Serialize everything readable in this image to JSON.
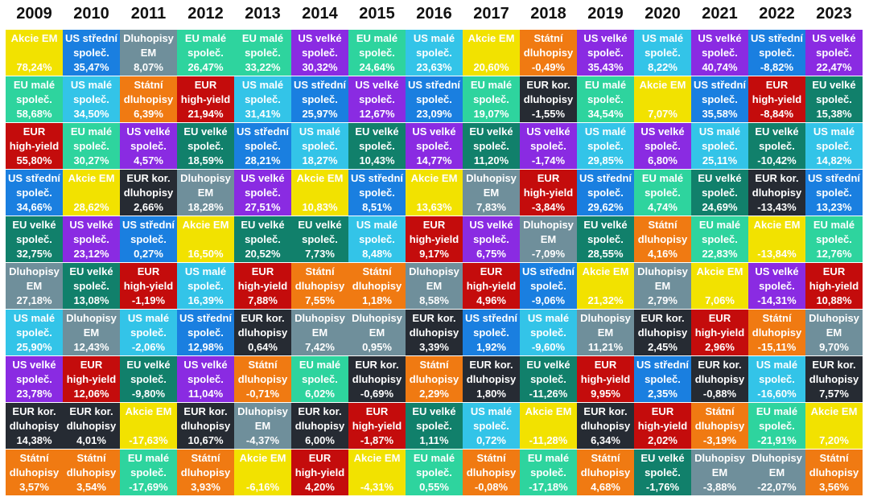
{
  "colors": {
    "Akcie EM": "#f2e200",
    "US střední společ.": "#1a7fe0",
    "Dluhopisy EM": "#6f8f9b",
    "EU malé společ.": "#2ed49e",
    "US velké společ.": "#8a2be2",
    "Státní dluhopisy": "#f07a12",
    "US malé společ.": "#33c4e8",
    "EUR high-yield": "#c40c0c",
    "EU velké společ.": "#11806b",
    "EUR kor. dluhopisy": "#262b33"
  },
  "labels": {
    "Akcie EM": "Akcie EM",
    "US střední společ.": "US střední\nspoleč.",
    "Dluhopisy EM": "Dluhopisy\nEM",
    "EU malé společ.": "EU malé\nspoleč.",
    "US velké společ.": "US velké\nspoleč.",
    "Státní dluhopisy": "Státní\ndluhopisy",
    "US malé společ.": "US malé\nspoleč.",
    "EUR high-yield": "EUR\nhigh-yield",
    "EU velké společ.": "EU velké\nspoleč.",
    "EUR kor. dluhopisy": "EUR kor.\ndluhopisy"
  },
  "chart_data": {
    "type": "table",
    "years": [
      "2009",
      "2010",
      "2011",
      "2012",
      "2013",
      "2014",
      "2015",
      "2016",
      "2017",
      "2018",
      "2019",
      "2020",
      "2021",
      "2022",
      "2023"
    ],
    "columns": [
      [
        [
          "Akcie EM",
          "78,24%"
        ],
        [
          "EU malé společ.",
          "58,68%"
        ],
        [
          "EUR high-yield",
          "55,80%"
        ],
        [
          "US střední společ.",
          "34,66%"
        ],
        [
          "EU velké společ.",
          "32,75%"
        ],
        [
          "Dluhopisy EM",
          "27,18%"
        ],
        [
          "US malé společ.",
          "25,90%"
        ],
        [
          "US velké společ.",
          "23,78%"
        ],
        [
          "EUR kor. dluhopisy",
          "14,38%"
        ],
        [
          "Státní dluhopisy",
          "3,57%"
        ]
      ],
      [
        [
          "US střední společ.",
          "35,47%"
        ],
        [
          "US malé společ.",
          "34,50%"
        ],
        [
          "EU malé společ.",
          "30,27%"
        ],
        [
          "Akcie EM",
          "28,62%"
        ],
        [
          "US velké společ.",
          "23,12%"
        ],
        [
          "EU velké společ.",
          "13,08%"
        ],
        [
          "Dluhopisy EM",
          "12,43%"
        ],
        [
          "EUR high-yield",
          "12,06%"
        ],
        [
          "EUR kor. dluhopisy",
          "4,01%"
        ],
        [
          "Státní dluhopisy",
          "3,54%"
        ]
      ],
      [
        [
          "Dluhopisy EM",
          "8,07%"
        ],
        [
          "Státní dluhopisy",
          "6,39%"
        ],
        [
          "US velké společ.",
          "4,57%"
        ],
        [
          "EUR kor. dluhopisy",
          "2,66%"
        ],
        [
          "US střední společ.",
          "0,27%"
        ],
        [
          "EUR high-yield",
          "-1,19%"
        ],
        [
          "US malé společ.",
          "-2,06%"
        ],
        [
          "EU velké společ.",
          "-9,80%"
        ],
        [
          "Akcie EM",
          "-17,63%"
        ],
        [
          "EU malé společ.",
          "-17,69%"
        ]
      ],
      [
        [
          "EU malé společ.",
          "26,47%"
        ],
        [
          "EUR high-yield",
          "21,94%"
        ],
        [
          "EU velké společ.",
          "18,59%"
        ],
        [
          "Dluhopisy EM",
          "18,28%"
        ],
        [
          "Akcie EM",
          "16,50%"
        ],
        [
          "US malé společ.",
          "16,39%"
        ],
        [
          "US střední společ.",
          "12,98%"
        ],
        [
          "US velké společ.",
          "11,04%"
        ],
        [
          "EUR kor. dluhopisy",
          "10,67%"
        ],
        [
          "Státní dluhopisy",
          "3,93%"
        ]
      ],
      [
        [
          "EU malé společ.",
          "33,22%"
        ],
        [
          "US malé společ.",
          "31,41%"
        ],
        [
          "US střední společ.",
          "28,21%"
        ],
        [
          "US velké společ.",
          "27,51%"
        ],
        [
          "EU velké společ.",
          "20,52%"
        ],
        [
          "EUR high-yield",
          "7,88%"
        ],
        [
          "EUR kor. dluhopisy",
          "0,64%"
        ],
        [
          "Státní dluhopisy",
          "-0,71%"
        ],
        [
          "Dluhopisy EM",
          "-4,37%"
        ],
        [
          "Akcie EM",
          "-6,16%"
        ]
      ],
      [
        [
          "US velké společ.",
          "30,32%"
        ],
        [
          "US střední společ.",
          "25,97%"
        ],
        [
          "US malé společ.",
          "18,27%"
        ],
        [
          "Akcie EM",
          "10,83%"
        ],
        [
          "EU velké společ.",
          "7,73%"
        ],
        [
          "Státní dluhopisy",
          "7,55%"
        ],
        [
          "Dluhopisy EM",
          "7,42%"
        ],
        [
          "EU malé společ.",
          "6,02%"
        ],
        [
          "EUR kor. dluhopisy",
          "6,00%"
        ],
        [
          "EUR high-yield",
          "4,20%"
        ]
      ],
      [
        [
          "EU malé společ.",
          "24,64%"
        ],
        [
          "US velké společ.",
          "12,67%"
        ],
        [
          "EU velké společ.",
          "10,43%"
        ],
        [
          "US střední společ.",
          "8,51%"
        ],
        [
          "US malé společ.",
          "8,48%"
        ],
        [
          "Státní dluhopisy",
          "1,18%"
        ],
        [
          "Dluhopisy EM",
          "0,95%"
        ],
        [
          "EUR kor. dluhopisy",
          "-0,69%"
        ],
        [
          "EUR high-yield",
          "-1,87%"
        ],
        [
          "Akcie EM",
          "-4,31%"
        ]
      ],
      [
        [
          "US malé společ.",
          "23,63%"
        ],
        [
          "US střední společ.",
          "23,09%"
        ],
        [
          "US velké společ.",
          "14,77%"
        ],
        [
          "Akcie EM",
          "13,63%"
        ],
        [
          "EUR high-yield",
          "9,17%"
        ],
        [
          "Dluhopisy EM",
          "8,58%"
        ],
        [
          "EUR kor. dluhopisy",
          "3,39%"
        ],
        [
          "Státní dluhopisy",
          "2,29%"
        ],
        [
          "EU velké společ.",
          "1,11%"
        ],
        [
          "EU malé společ.",
          "0,55%"
        ]
      ],
      [
        [
          "Akcie EM",
          "20,60%"
        ],
        [
          "EU malé společ.",
          "19,07%"
        ],
        [
          "EU velké společ.",
          "11,20%"
        ],
        [
          "Dluhopisy EM",
          "7,83%"
        ],
        [
          "US velké společ.",
          "6,75%"
        ],
        [
          "EUR high-yield",
          "4,96%"
        ],
        [
          "US střední společ.",
          "1,92%"
        ],
        [
          "EUR kor. dluhopisy",
          "1,80%"
        ],
        [
          "US malé společ.",
          "0,72%"
        ],
        [
          "Státní dluhopisy",
          "-0,08%"
        ]
      ],
      [
        [
          "Státní dluhopisy",
          "-0,49%"
        ],
        [
          "EUR kor. dluhopisy",
          "-1,55%"
        ],
        [
          "US velké společ.",
          "-1,74%"
        ],
        [
          "EUR high-yield",
          "-3,84%"
        ],
        [
          "Dluhopisy EM",
          "-7,09%"
        ],
        [
          "US střední společ.",
          "-9,06%"
        ],
        [
          "US malé společ.",
          "-9,60%"
        ],
        [
          "EU velké společ.",
          "-11,26%"
        ],
        [
          "Akcie EM",
          "-11,28%"
        ],
        [
          "EU malé společ.",
          "-17,18%"
        ]
      ],
      [
        [
          "US velké společ.",
          "35,43%"
        ],
        [
          "EU malé společ.",
          "34,54%"
        ],
        [
          "US malé společ.",
          "29,85%"
        ],
        [
          "US střední společ.",
          "29,62%"
        ],
        [
          "EU velké společ.",
          "28,55%"
        ],
        [
          "Akcie EM",
          "21,32%"
        ],
        [
          "Dluhopisy EM",
          "11,21%"
        ],
        [
          "EUR high-yield",
          "9,95%"
        ],
        [
          "EUR kor. dluhopisy",
          "6,34%"
        ],
        [
          "Státní dluhopisy",
          "4,68%"
        ]
      ],
      [
        [
          "US malé společ.",
          "8,22%"
        ],
        [
          "Akcie EM",
          "7,07%"
        ],
        [
          "US velké společ.",
          "6,80%"
        ],
        [
          "EU malé společ.",
          "4,74%"
        ],
        [
          "Státní dluhopisy",
          "4,16%"
        ],
        [
          "Dluhopisy EM",
          "2,79%"
        ],
        [
          "EUR kor. dluhopisy",
          "2,45%"
        ],
        [
          "US střední společ.",
          "2,35%"
        ],
        [
          "EUR high-yield",
          "2,02%"
        ],
        [
          "EU velké společ.",
          "-1,76%"
        ]
      ],
      [
        [
          "US velké společ.",
          "40,74%"
        ],
        [
          "US střední společ.",
          "35,58%"
        ],
        [
          "US malé společ.",
          "25,11%"
        ],
        [
          "EU velké společ.",
          "24,69%"
        ],
        [
          "EU malé společ.",
          "22,83%"
        ],
        [
          "Akcie EM",
          "7,06%"
        ],
        [
          "EUR high-yield",
          "2,96%"
        ],
        [
          "EUR kor. dluhopisy",
          "-0,88%"
        ],
        [
          "Státní dluhopisy",
          "-3,19%"
        ],
        [
          "Dluhopisy EM",
          "-3,88%"
        ]
      ],
      [
        [
          "US střední společ.",
          "-8,82%"
        ],
        [
          "EUR high-yield",
          "-8,84%"
        ],
        [
          "EU velké společ.",
          "-10,42%"
        ],
        [
          "EUR kor. dluhopisy",
          "-13,43%"
        ],
        [
          "Akcie EM",
          "-13,84%"
        ],
        [
          "US velké společ.",
          "-14,31%"
        ],
        [
          "Státní dluhopisy",
          "-15,11%"
        ],
        [
          "US malé společ.",
          "-16,60%"
        ],
        [
          "EU malé společ.",
          "-21,91%"
        ],
        [
          "Dluhopisy EM",
          "-22,07%"
        ]
      ],
      [
        [
          "US velké společ.",
          "22,47%"
        ],
        [
          "EU velké společ.",
          "15,38%"
        ],
        [
          "US malé společ.",
          "14,82%"
        ],
        [
          "US střední společ.",
          "13,23%"
        ],
        [
          "EU malé společ.",
          "12,76%"
        ],
        [
          "EUR high-yield",
          "10,88%"
        ],
        [
          "Dluhopisy EM",
          "9,70%"
        ],
        [
          "EUR kor. dluhopisy",
          "7,57%"
        ],
        [
          "Akcie EM",
          "7,20%"
        ],
        [
          "Státní dluhopisy",
          "3,56%"
        ]
      ]
    ]
  }
}
